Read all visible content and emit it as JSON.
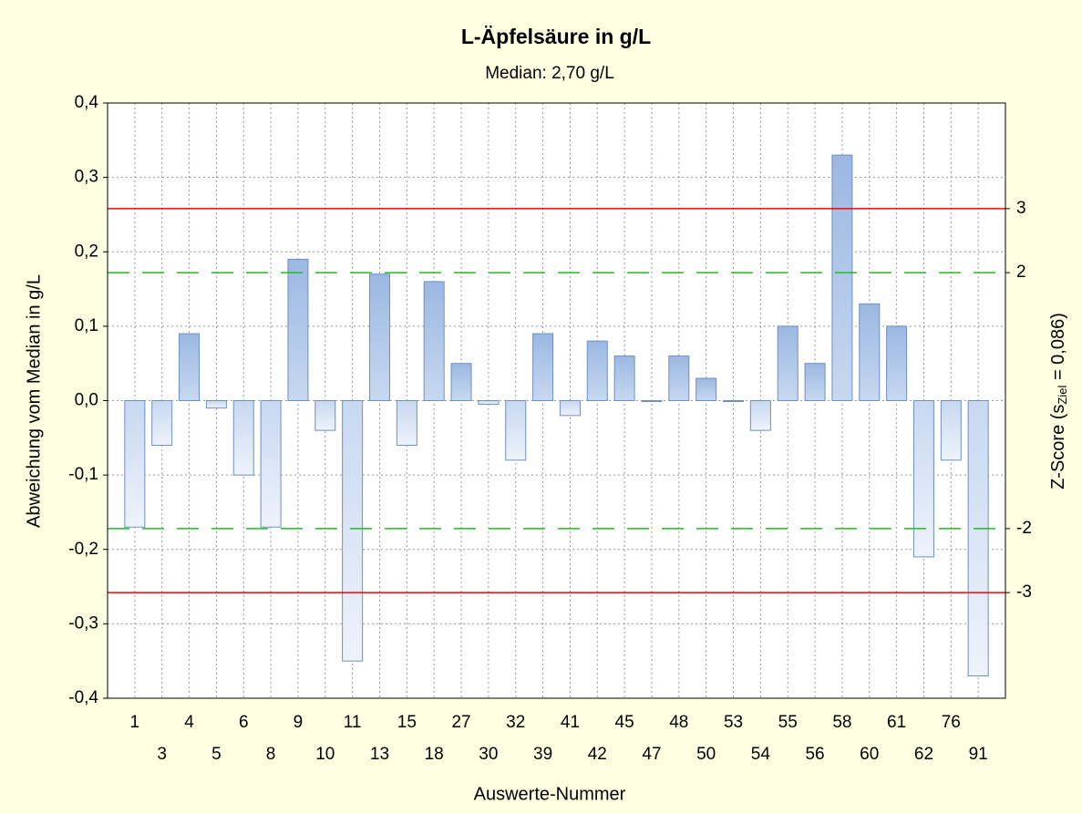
{
  "chart_data": {
    "type": "bar",
    "title": "L-Äpfelsäure in g/L",
    "subtitle": "Median: 2,70 g/L",
    "xlabel": "Auswerte-Nummer",
    "ylabel": "Abweichung vom Median in g/L",
    "y2label": [
      "Z-Score (s",
      "Ziel",
      " = 0,086)"
    ],
    "categories": [
      "1",
      "3",
      "4",
      "5",
      "6",
      "8",
      "9",
      "10",
      "11",
      "13",
      "15",
      "18",
      "27",
      "30",
      "32",
      "39",
      "41",
      "42",
      "45",
      "47",
      "48",
      "50",
      "53",
      "54",
      "55",
      "56",
      "58",
      "60",
      "61",
      "62",
      "76",
      "91"
    ],
    "values": [
      -0.17,
      -0.06,
      0.09,
      -0.01,
      -0.1,
      -0.17,
      0.19,
      -0.04,
      -0.35,
      0.17,
      -0.06,
      0.16,
      0.05,
      -0.005,
      -0.08,
      0.09,
      -0.02,
      0.08,
      0.06,
      0.0,
      0.06,
      0.03,
      0.0,
      -0.04,
      0.1,
      0.05,
      0.33,
      0.13,
      0.1,
      -0.21,
      -0.08,
      -0.37
    ],
    "color": "#a9c3e8",
    "ylim": [
      -0.4,
      0.4
    ],
    "yticks": [
      {
        "value": -0.4,
        "label": "-0,4"
      },
      {
        "value": -0.3,
        "label": "-0,3"
      },
      {
        "value": -0.2,
        "label": "-0,2"
      },
      {
        "value": -0.1,
        "label": "-0,1"
      },
      {
        "value": 0.0,
        "label": "0,0"
      },
      {
        "value": 0.1,
        "label": "0,1"
      },
      {
        "value": 0.2,
        "label": "0,2"
      },
      {
        "value": 0.3,
        "label": "0,3"
      },
      {
        "value": 0.4,
        "label": "0,4"
      }
    ],
    "y2lim": [
      -4.651,
      4.651
    ],
    "y2ticks": [
      -3,
      -2,
      2,
      3
    ],
    "reference_lines": [
      {
        "axis": "y2",
        "value": 3,
        "color": "#ff0000",
        "dash": false
      },
      {
        "axis": "y2",
        "value": 2,
        "color": "#22bb22",
        "dash": true
      },
      {
        "axis": "y2",
        "value": -2,
        "color": "#22bb22",
        "dash": true
      },
      {
        "axis": "y2",
        "value": -3,
        "color": "#ff0000",
        "dash": false
      }
    ],
    "grid": true
  }
}
